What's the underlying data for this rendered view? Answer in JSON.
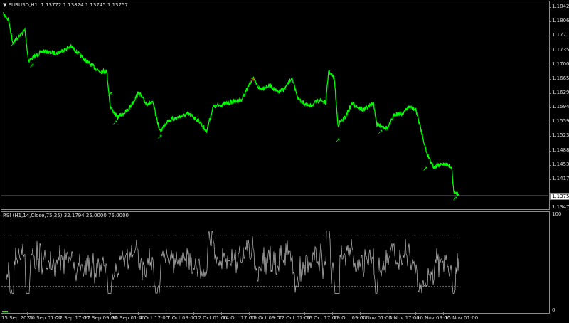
{
  "main_chart": {
    "symbol_title": "EURUSD,H1",
    "ohlc": "1.13772 1.13824 1.13745 1.13757",
    "current_price": "1.13757",
    "line_color": "#00ff00",
    "signal_color": "#ff0000",
    "price_axis": [
      "1.18420",
      "1.18060",
      "1.17710",
      "1.17350",
      "1.17000",
      "1.16650",
      "1.16290",
      "1.15940",
      "1.15590",
      "1.15230",
      "1.14880",
      "1.14530",
      "1.14170",
      "1.13470"
    ]
  },
  "rsi": {
    "title": "RSI (H1,14,Close,75,25) 32.1794 25.0000 75.0000",
    "levels": [
      25,
      75
    ],
    "axis": [
      "100",
      "0"
    ],
    "line_color": "#c0c0c0"
  },
  "time_axis": [
    "15 Sep 2021",
    "20 Sep 01:00",
    "22 Sep 17:00",
    "27 Sep 09:00",
    "30 Sep 01:00",
    "4 Oct 17:00",
    "7 Oct 09:00",
    "12 Oct 01:00",
    "14 Oct 17:00",
    "19 Oct 09:00",
    "22 Oct 01:00",
    "26 Oct 17:00",
    "29 Oct 09:00",
    "3 Nov 01:00",
    "5 Nov 17:00",
    "10 Nov 09:00",
    "15 Nov 01:00"
  ]
}
